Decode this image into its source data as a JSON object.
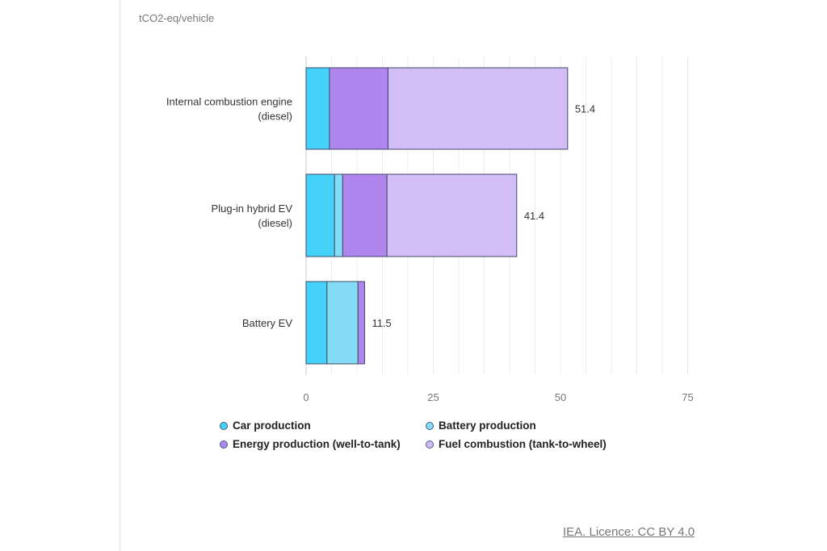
{
  "chart_data": {
    "type": "bar",
    "orientation": "horizontal",
    "stacked": true,
    "unit_label": "tCO2-eq/vehicle",
    "categories": [
      "Internal combustion engine (diesel)",
      "Plug-in hybrid EV (diesel)",
      "Battery EV"
    ],
    "category_lines": [
      [
        "Internal combustion engine",
        "(diesel)"
      ],
      [
        "Plug-in hybrid EV",
        "(diesel)"
      ],
      [
        "Battery EV"
      ]
    ],
    "series": [
      {
        "name": "Car production",
        "color": "#45d2fa",
        "values": [
          4.6,
          5.6,
          4.1
        ]
      },
      {
        "name": "Battery production",
        "color": "#86dcf6",
        "values": [
          0,
          1.6,
          6.1
        ]
      },
      {
        "name": "Energy production (well-to-tank)",
        "color": "#b086ee",
        "values": [
          11.5,
          8.7,
          1.3
        ]
      },
      {
        "name": "Fuel combustion (tank-to-wheel)",
        "color": "#d2bdf6",
        "values": [
          35.3,
          25.5,
          0
        ]
      }
    ],
    "totals": [
      "51.4",
      "41.4",
      "11.5"
    ],
    "xlim": [
      0,
      75
    ],
    "xticks": [
      0,
      25,
      50,
      75
    ],
    "grid": true,
    "legend_position": "bottom"
  },
  "credit": "IEA. Licence: CC BY 4.0"
}
